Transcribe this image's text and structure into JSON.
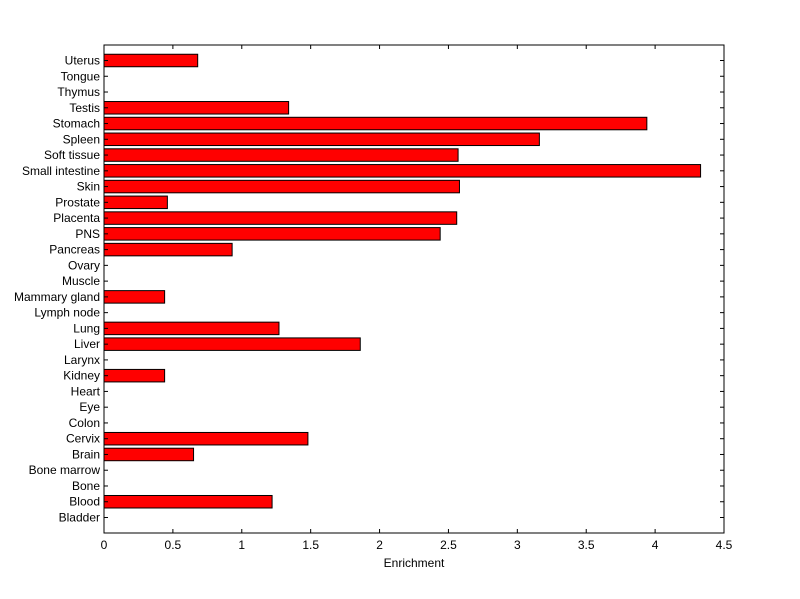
{
  "chart_data": {
    "type": "bar",
    "orientation": "horizontal",
    "categories": [
      "Bladder",
      "Blood",
      "Bone",
      "Bone marrow",
      "Brain",
      "Cervix",
      "Colon",
      "Eye",
      "Heart",
      "Kidney",
      "Larynx",
      "Liver",
      "Lung",
      "Lymph node",
      "Mammary gland",
      "Muscle",
      "Ovary",
      "Pancreas",
      "PNS",
      "Placenta",
      "Prostate",
      "Skin",
      "Small intestine",
      "Soft tissue",
      "Spleen",
      "Stomach",
      "Testis",
      "Thymus",
      "Tongue",
      "Uterus"
    ],
    "values": [
      0,
      1.22,
      0,
      0,
      0.65,
      1.48,
      0,
      0,
      0,
      0.44,
      0,
      1.86,
      1.27,
      0,
      0.44,
      0,
      0,
      0.93,
      2.44,
      2.56,
      0.46,
      2.58,
      4.33,
      2.57,
      3.16,
      3.94,
      1.34,
      0,
      0,
      0.68
    ],
    "xlabel": "Enrichment",
    "ylabel": "",
    "title": "",
    "xlim": [
      0,
      4.5
    ],
    "xticks": [
      "0",
      "0.5",
      "1",
      "1.5",
      "2",
      "2.5",
      "3",
      "3.5",
      "4",
      "4.5"
    ],
    "bar_color": "#ff0000",
    "bar_edge_color": "#000000",
    "grid": false
  }
}
